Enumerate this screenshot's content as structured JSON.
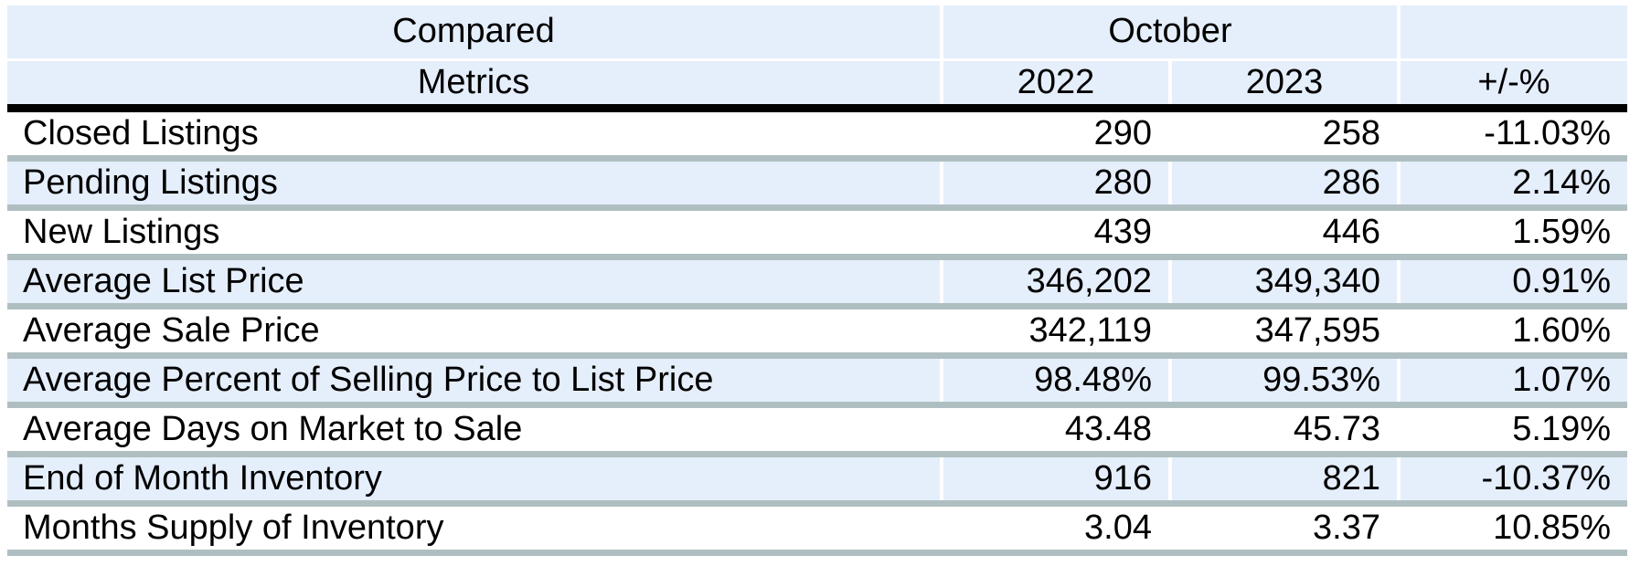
{
  "table": {
    "header": {
      "compared_label": "Compared",
      "metrics_label": "Metrics",
      "month_label": "October",
      "year1_label": "2022",
      "year2_label": "2023",
      "change_label": "+/-%"
    }
  },
  "chart_data": {
    "type": "table",
    "column_groups": {
      "left_title_lines": [
        "Compared",
        "Metrics"
      ],
      "right_group_title": "October"
    },
    "columns": [
      "Metrics",
      "2022",
      "2023",
      "+/-%"
    ],
    "rows": [
      [
        "Closed Listings",
        290,
        258,
        "-11.03%"
      ],
      [
        "Pending Listings",
        280,
        286,
        "2.14%"
      ],
      [
        "New Listings",
        439,
        446,
        "1.59%"
      ],
      [
        "Average List Price",
        "346,202",
        "349,340",
        "0.91%"
      ],
      [
        "Average Sale Price",
        "342,119",
        "347,595",
        "1.60%"
      ],
      [
        "Average Percent of Selling Price to List Price",
        "98.48%",
        "99.53%",
        "1.07%"
      ],
      [
        "Average Days on Market to Sale",
        "43.48",
        "45.73",
        "5.19%"
      ],
      [
        "End of Month Inventory",
        916,
        821,
        "-10.37%"
      ],
      [
        "Months Supply of Inventory",
        "3.04",
        "3.37",
        "10.85%"
      ]
    ],
    "layout": {
      "zebra_striping": true,
      "first_data_row_background": "white",
      "value_alignment": "right",
      "header_alignment": "center"
    }
  },
  "colors": {
    "header_bg": "#e5eefb",
    "row_alt_bg": "#e5eefb",
    "separator": "#afbfc1",
    "header_rule": "#000000",
    "text": "#000000"
  }
}
